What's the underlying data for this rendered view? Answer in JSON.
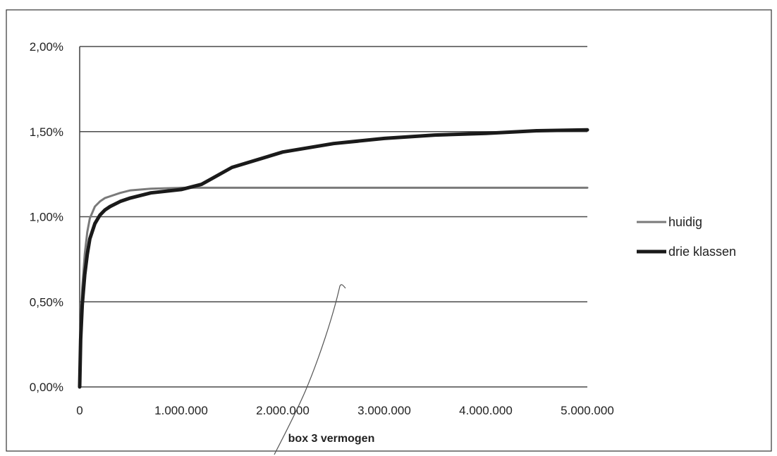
{
  "chart_data": {
    "type": "line",
    "title": "",
    "xlabel": "box 3 vermogen",
    "ylabel": "",
    "xlim": [
      0,
      5000000
    ],
    "ylim": [
      0,
      0.02
    ],
    "x_ticks": [
      {
        "value": 0,
        "label": "0"
      },
      {
        "value": 1000000,
        "label": "1.000.000"
      },
      {
        "value": 2000000,
        "label": "2.000.000"
      },
      {
        "value": 3000000,
        "label": "3.000.000"
      },
      {
        "value": 4000000,
        "label": "4.000.000"
      },
      {
        "value": 5000000,
        "label": "5.000.000"
      }
    ],
    "y_ticks": [
      {
        "value": 0,
        "label": "0,00%"
      },
      {
        "value": 0.005,
        "label": "0,50%"
      },
      {
        "value": 0.01,
        "label": "1,00%"
      },
      {
        "value": 0.015,
        "label": "1,50%"
      },
      {
        "value": 0.02,
        "label": "2,00%"
      }
    ],
    "grid": true,
    "legend_position": "right",
    "series": [
      {
        "name": "huidig",
        "color": "#7a7a7a",
        "x": [
          0,
          10000,
          25000,
          50000,
          75000,
          100000,
          150000,
          200000,
          250000,
          300000,
          400000,
          500000,
          700000,
          1000000,
          1500000,
          2000000,
          3000000,
          4000000,
          5000000
        ],
        "y": [
          0,
          0.0035,
          0.0058,
          0.0078,
          0.0091,
          0.0099,
          0.0106,
          0.0109,
          0.0111,
          0.0112,
          0.0114,
          0.01155,
          0.01165,
          0.0117,
          0.0117,
          0.0117,
          0.0117,
          0.0117,
          0.0117
        ]
      },
      {
        "name": "drie klassen",
        "color": "#1a1a1a",
        "x": [
          0,
          10000,
          25000,
          50000,
          75000,
          100000,
          150000,
          200000,
          250000,
          300000,
          400000,
          500000,
          700000,
          1000000,
          1200000,
          1500000,
          2000000,
          2500000,
          3000000,
          3500000,
          4000000,
          4500000,
          5000000
        ],
        "y": [
          0,
          0.0028,
          0.0048,
          0.0066,
          0.0078,
          0.0087,
          0.0096,
          0.0101,
          0.0104,
          0.0106,
          0.0109,
          0.0111,
          0.0114,
          0.0116,
          0.0119,
          0.0129,
          0.0138,
          0.0143,
          0.0146,
          0.0148,
          0.0149,
          0.01505,
          0.0151
        ]
      }
    ]
  }
}
